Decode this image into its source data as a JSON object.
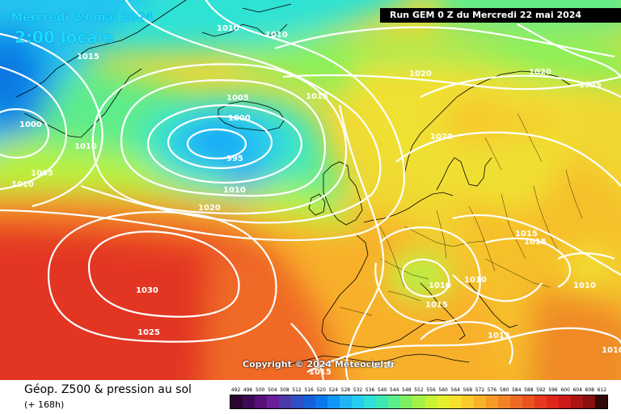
{
  "map": {
    "date_label": "Mercredi 29 mai 2024",
    "time_label": "2:00 locale",
    "run_label": "Run GEM 0 Z du Mercredi 22 mai 2024",
    "copyright": "Copyright © 2024 Meteociel.fr",
    "isobar_labels": [
      "1010",
      "1010",
      "1015",
      "1000",
      "1010",
      "1005",
      "1010",
      "1005",
      "1000",
      "995",
      "1010",
      "1015",
      "1020",
      "1020",
      "1020",
      "1025",
      "1020",
      "1015",
      "1015",
      "1010",
      "1010",
      "1015",
      "1010",
      "1030",
      "1025",
      "1015",
      "1015",
      "1010",
      "1010"
    ]
  },
  "footer": {
    "title": "Géop. Z500 & pression au sol",
    "subtitle": "(+ 168h)"
  },
  "legend": {
    "labels": [
      "492",
      "496",
      "500",
      "504",
      "508",
      "512",
      "516",
      "520",
      "524",
      "528",
      "532",
      "536",
      "540",
      "544",
      "548",
      "552",
      "556",
      "560",
      "564",
      "568",
      "572",
      "576",
      "580",
      "584",
      "588",
      "592",
      "596",
      "600",
      "604",
      "608",
      "612"
    ],
    "colors": [
      "#2a0530",
      "#3f0a55",
      "#57107a",
      "#6a1f9a",
      "#4a3aa8",
      "#2f4fc4",
      "#1560d8",
      "#0a78ec",
      "#1096f5",
      "#1fb4f5",
      "#26cdf0",
      "#2fe0d8",
      "#3ee8b4",
      "#5aee8c",
      "#7cf062",
      "#a4f246",
      "#c8f236",
      "#e6ee2e",
      "#f5e02c",
      "#f8ca2a",
      "#f8b228",
      "#f69a26",
      "#f28224",
      "#ee6a22",
      "#ea5220",
      "#e63a1e",
      "#de261c",
      "#cc1a1a",
      "#aa1414",
      "#861010",
      "#300808"
    ]
  }
}
